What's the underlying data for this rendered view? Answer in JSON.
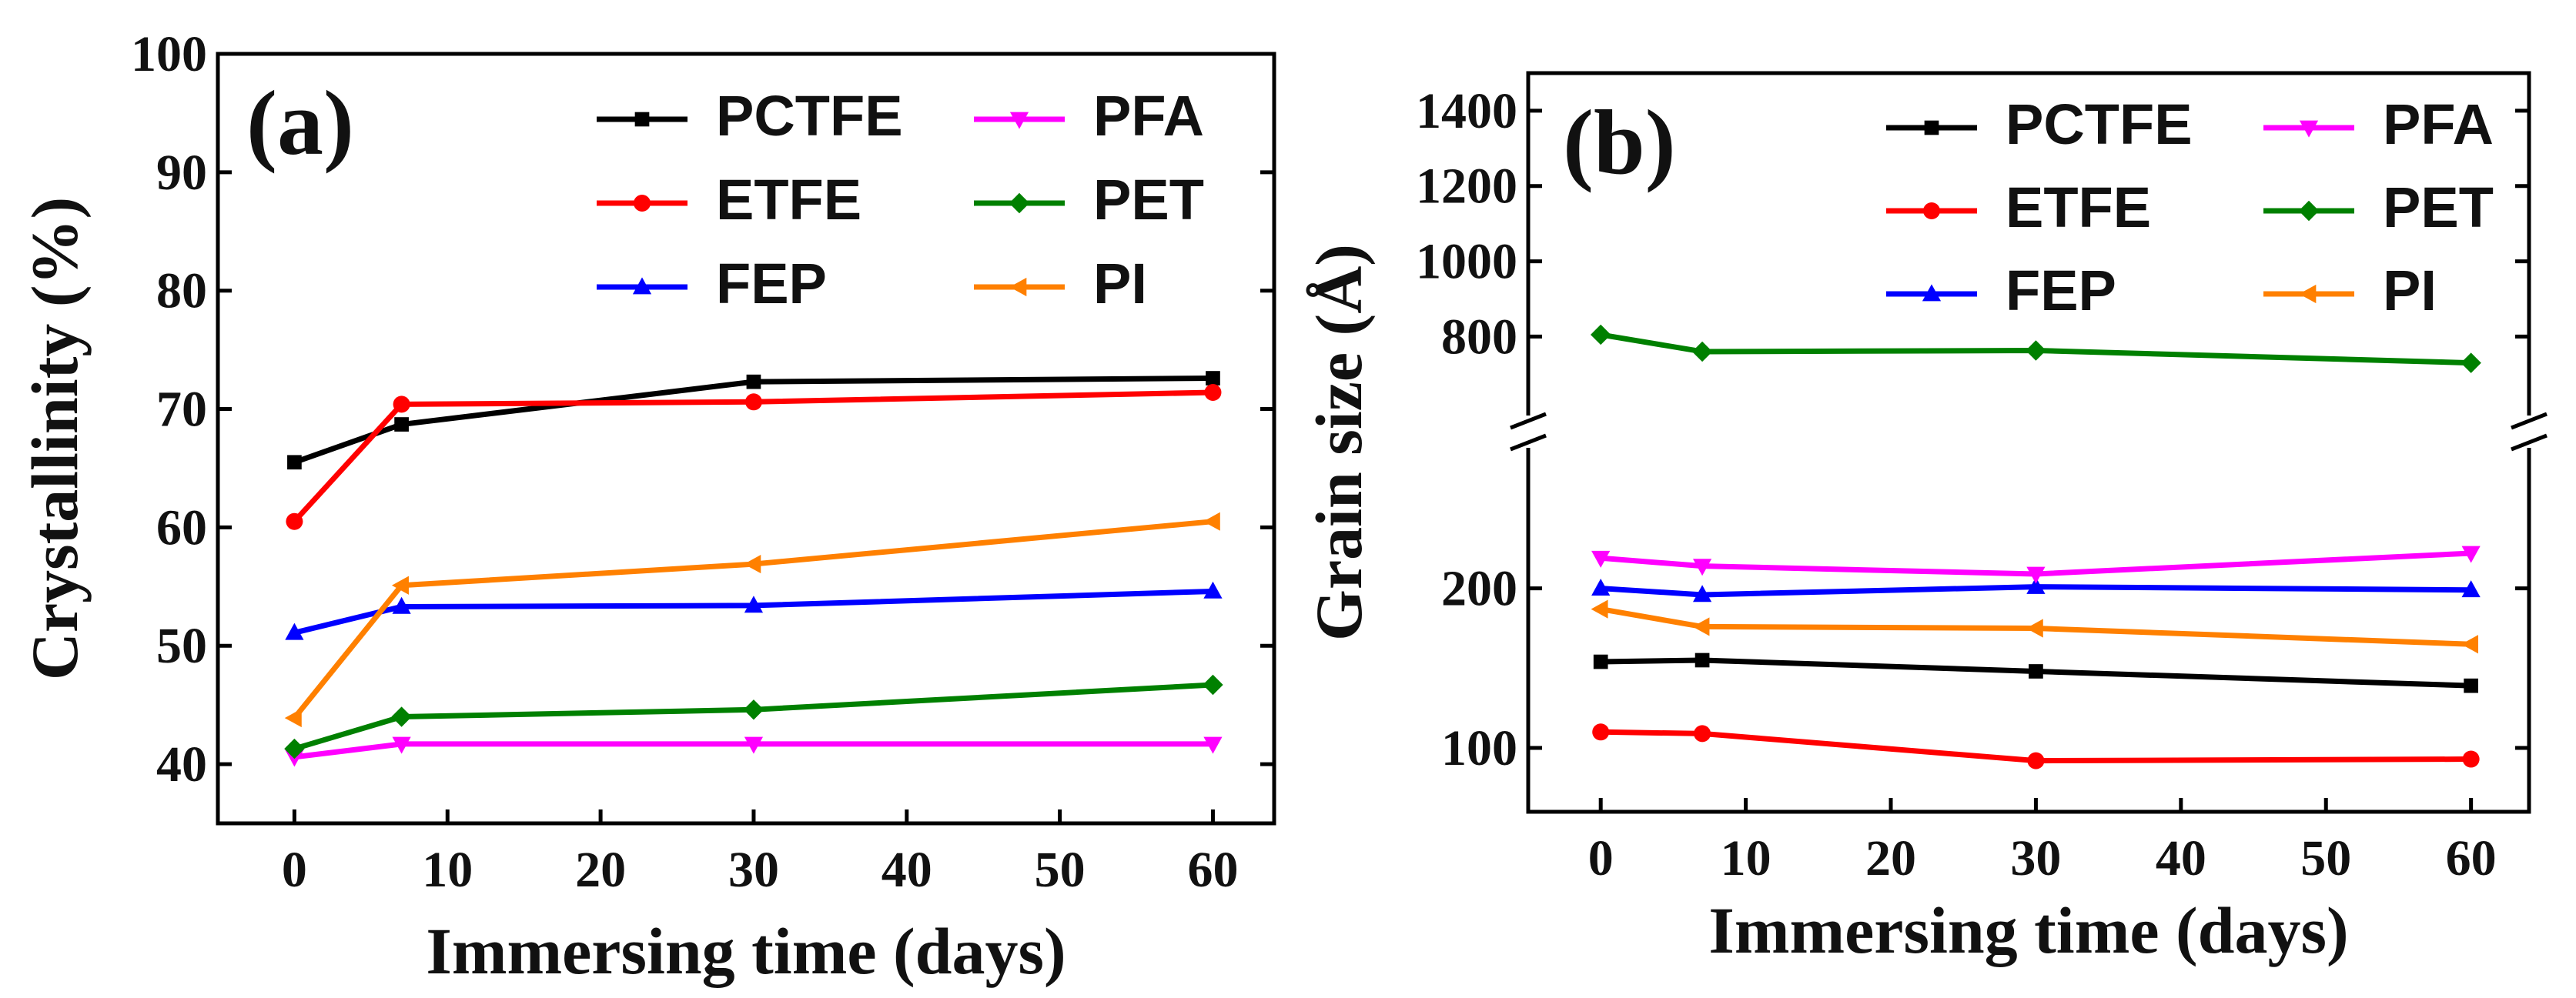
{
  "chart_data": [
    {
      "type": "line",
      "panel_label": "(a)",
      "xlabel": "Immersing time (days)",
      "ylabel": "Crystallinity (%)",
      "xlim": [
        -5,
        64
      ],
      "ylim": [
        35,
        100
      ],
      "xticks": [
        "0",
        "10",
        "20",
        "30",
        "40",
        "50",
        "60"
      ],
      "yticks": [
        "40",
        "50",
        "60",
        "70",
        "80",
        "90",
        "100"
      ],
      "legend_position": "top-right",
      "x": [
        0,
        7,
        30,
        60
      ],
      "series": [
        {
          "name": "PCTFE",
          "color": "#000000",
          "marker": "square",
          "values": [
            65.5,
            68.7,
            72.3,
            72.6
          ]
        },
        {
          "name": "ETFE",
          "color": "#ff0000",
          "marker": "circle",
          "values": [
            60.5,
            70.4,
            70.6,
            71.4
          ]
        },
        {
          "name": "FEP",
          "color": "#0000ff",
          "marker": "triangle-up",
          "values": [
            51.1,
            53.3,
            53.4,
            54.6
          ]
        },
        {
          "name": "PFA",
          "color": "#ff00ff",
          "marker": "triangle-down",
          "values": [
            40.6,
            41.7,
            41.7,
            41.7
          ]
        },
        {
          "name": "PET",
          "color": "#008000",
          "marker": "diamond",
          "values": [
            41.3,
            44.0,
            44.6,
            46.7
          ]
        },
        {
          "name": "PI",
          "color": "#ff8000",
          "marker": "triangle-left",
          "values": [
            43.9,
            55.1,
            56.9,
            60.5
          ]
        }
      ]
    },
    {
      "type": "line",
      "panel_label": "(b)",
      "xlabel": "Immersing time (days)",
      "ylabel": "Grain size (Å)",
      "xlim": [
        -5,
        64
      ],
      "ylim_lower": [
        60,
        290
      ],
      "ylim_upper": [
        580,
        1500
      ],
      "axis_break": true,
      "xticks": [
        "0",
        "10",
        "20",
        "30",
        "40",
        "50",
        "60"
      ],
      "yticks_lower": [
        "100",
        "200"
      ],
      "yticks_upper": [
        "800",
        "1000",
        "1200",
        "1400"
      ],
      "legend_position": "top-right",
      "x": [
        0,
        7,
        30,
        60
      ],
      "series": [
        {
          "name": "PCTFE",
          "color": "#000000",
          "marker": "square",
          "values": [
            154,
            155,
            148,
            139
          ]
        },
        {
          "name": "ETFE",
          "color": "#ff0000",
          "marker": "circle",
          "values": [
            110,
            109,
            92,
            93
          ]
        },
        {
          "name": "FEP",
          "color": "#0000ff",
          "marker": "triangle-up",
          "values": [
            200,
            196,
            201,
            199
          ]
        },
        {
          "name": "PFA",
          "color": "#ff00ff",
          "marker": "triangle-down",
          "values": [
            219,
            214,
            209,
            222
          ]
        },
        {
          "name": "PET",
          "color": "#008000",
          "marker": "diamond",
          "values": [
            805,
            760,
            763,
            730
          ]
        },
        {
          "name": "PI",
          "color": "#ff8000",
          "marker": "triangle-left",
          "values": [
            187,
            176,
            175,
            165
          ]
        }
      ]
    }
  ]
}
